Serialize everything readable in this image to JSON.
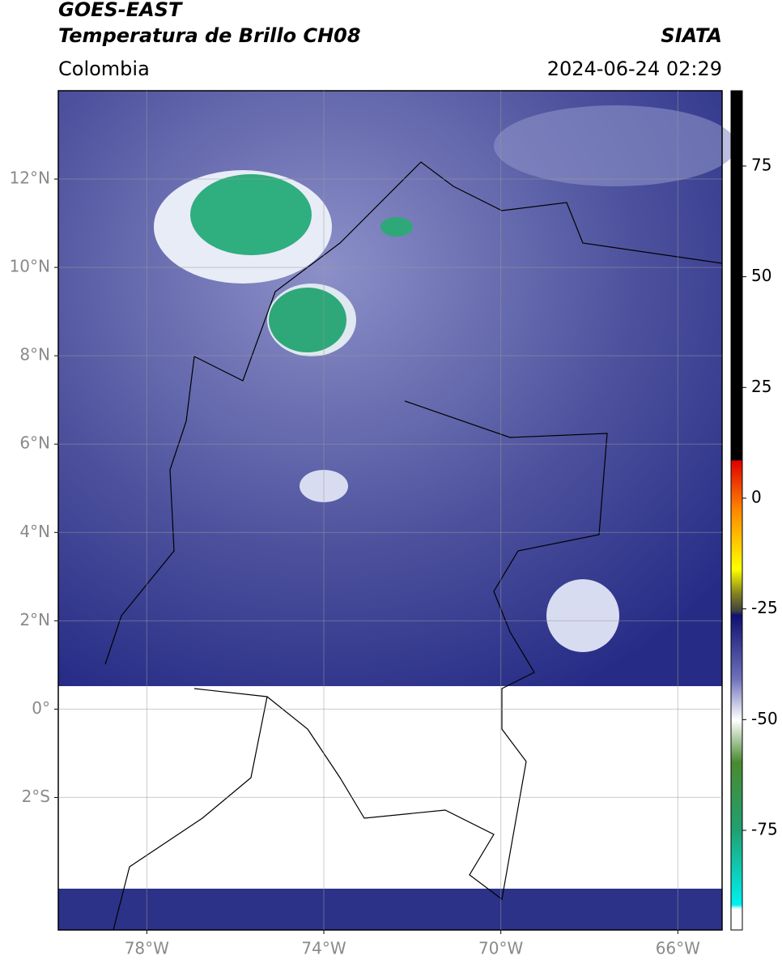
{
  "header": {
    "title": "GOES-EAST",
    "subtitle": "Temperatura de Brillo CH08",
    "source": "SIATA",
    "region": "Colombia",
    "datetime": "2024-06-24 02:29"
  },
  "map": {
    "xlim": [
      -80,
      -65
    ],
    "ylim": [
      -5,
      14
    ],
    "xticks": [
      {
        "value": -78,
        "label": "78°W"
      },
      {
        "value": -74,
        "label": "74°W"
      },
      {
        "value": -70,
        "label": "70°W"
      },
      {
        "value": -66,
        "label": "66°W"
      }
    ],
    "yticks": [
      {
        "value": 12,
        "label": "12°N"
      },
      {
        "value": 10,
        "label": "10°N"
      },
      {
        "value": 8,
        "label": "8°N"
      },
      {
        "value": 6,
        "label": "6°N"
      },
      {
        "value": 4,
        "label": "4°N"
      },
      {
        "value": 2,
        "label": "2°N"
      },
      {
        "value": 0,
        "label": "0°"
      },
      {
        "value": -2,
        "label": "2°S"
      }
    ],
    "grid": true
  },
  "colorbar": {
    "lim": [
      -97.5,
      92
    ],
    "ticks": [
      75,
      50,
      25,
      0,
      -25,
      -50,
      -75
    ]
  }
}
